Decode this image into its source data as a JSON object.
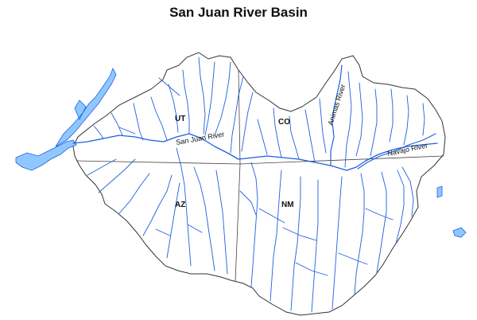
{
  "title": "San Juan River Basin",
  "states": [
    {
      "abbr": "UT"
    },
    {
      "abbr": "CO"
    },
    {
      "abbr": "AZ"
    },
    {
      "abbr": "NM"
    }
  ],
  "rivers": [
    {
      "name": "San Juan River"
    },
    {
      "name": "Animas River"
    },
    {
      "name": "Navajo River"
    }
  ],
  "colors": {
    "river": "#1f5fe0",
    "lake_fill": "#8fc8ff",
    "boundary": "#333333",
    "state_line": "#444444"
  }
}
